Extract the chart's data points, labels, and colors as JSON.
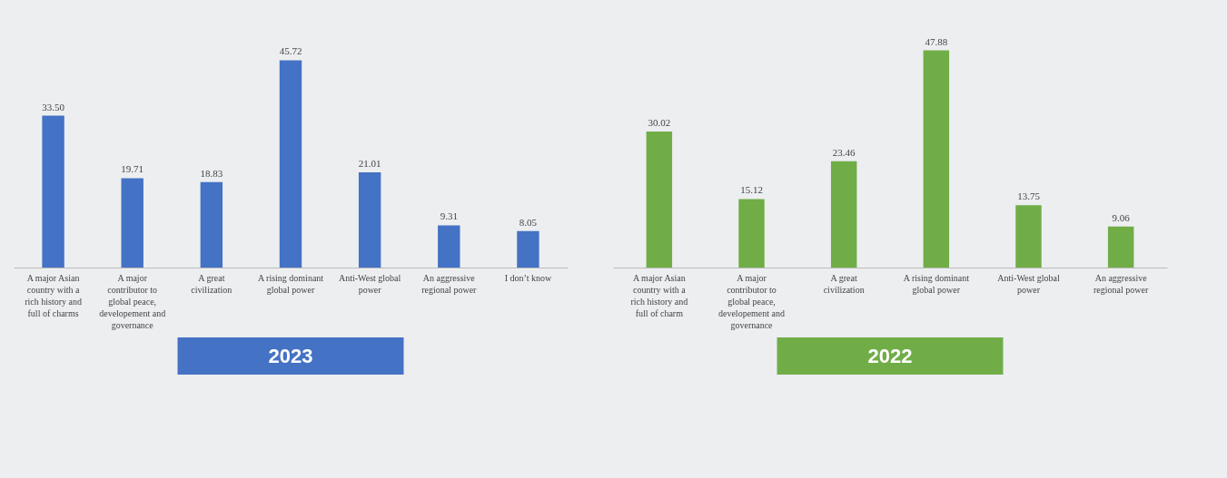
{
  "chart_data": [
    {
      "type": "bar",
      "title": "2023",
      "categories": [
        "A major Asian country with a rich history and full of charms",
        "A major contributor to global peace, developement and governance",
        "A great civilization",
        "A rising dominant global power",
        "Anti-West global power",
        "An aggressive regional power",
        "I don’t know"
      ],
      "values": [
        33.5,
        19.71,
        18.83,
        45.72,
        21.01,
        9.31,
        8.05
      ],
      "value_labels": [
        "33.50",
        "19.71",
        "18.83",
        "45.72",
        "21.01",
        "9.31",
        "8.05"
      ],
      "color": "#4472c4"
    },
    {
      "type": "bar",
      "title": "2022",
      "categories": [
        "A major Asian country with a rich history and full of charm",
        "A major contributor to global peace, developement and governance",
        "A great civilization",
        "A rising dominant global power",
        "Anti-West global power",
        "An aggressive regional power"
      ],
      "values": [
        30.02,
        15.12,
        23.46,
        47.88,
        13.75,
        9.06
      ],
      "value_labels": [
        "30.02",
        "15.12",
        "23.46",
        "47.88",
        "13.75",
        "9.06"
      ],
      "color": "#70ad47"
    }
  ]
}
